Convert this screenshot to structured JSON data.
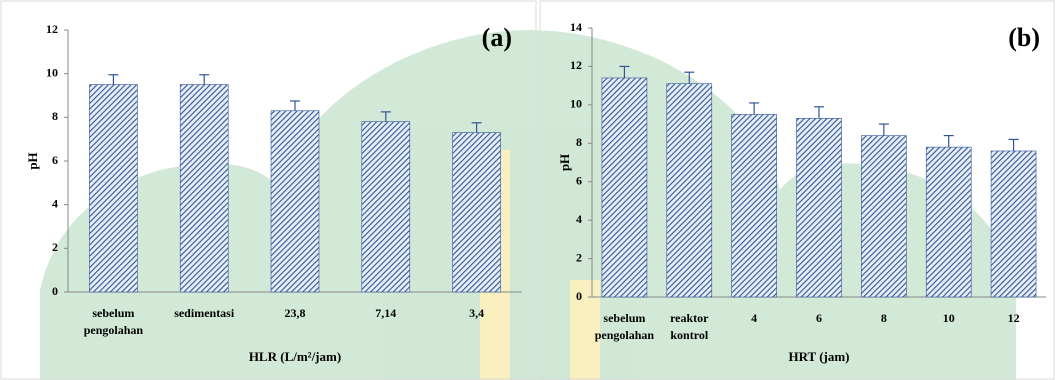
{
  "chart_data": [
    {
      "type": "bar",
      "panel": "(a)",
      "y_label": "pH",
      "x_label": "HLR (L/m²/jam)",
      "categories": [
        [
          "sebelum",
          "pengolahan"
        ],
        [
          "sedimentasi"
        ],
        [
          "23,8"
        ],
        [
          "7,14"
        ],
        [
          "3,4"
        ]
      ],
      "values": [
        9.5,
        9.5,
        8.3,
        7.8,
        7.3
      ],
      "errors": [
        0.45,
        0.45,
        0.45,
        0.45,
        0.45
      ],
      "color": "#2f5597",
      "ylim": [
        0,
        12
      ],
      "yticks": [
        0,
        2,
        4,
        6,
        8,
        10,
        12
      ]
    },
    {
      "type": "bar",
      "panel": "(b)",
      "y_label": "pH",
      "x_label": "HRT (jam)",
      "categories": [
        [
          "sebelum",
          "pengolahan"
        ],
        [
          "reaktor",
          "kontrol"
        ],
        [
          "4"
        ],
        [
          "6"
        ],
        [
          "8"
        ],
        [
          "10"
        ],
        [
          "12"
        ]
      ],
      "values": [
        11.4,
        11.1,
        9.5,
        9.3,
        8.4,
        7.8,
        7.6
      ],
      "errors": [
        0.6,
        0.6,
        0.6,
        0.6,
        0.6,
        0.6,
        0.6
      ],
      "color": "#2f5597",
      "ylim": [
        0,
        14
      ],
      "yticks": [
        0,
        2,
        4,
        6,
        8,
        10,
        12,
        14
      ]
    }
  ]
}
